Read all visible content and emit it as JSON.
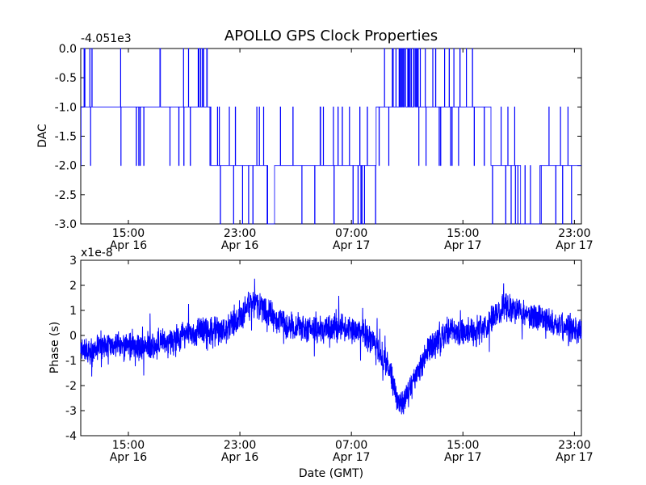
{
  "title": "APOLLO GPS Clock Properties",
  "chart_data": [
    {
      "type": "line",
      "panel": "top",
      "ylabel": "DAC",
      "y_offset_label": "-4.051e3",
      "ylim": [
        -3.0,
        0.0
      ],
      "yticks": [
        "0.0",
        "-0.5",
        "-1.0",
        "-1.5",
        "-2.0",
        "-2.5",
        "-3.0"
      ],
      "xticks": [
        {
          "time": "15:00",
          "date": "Apr 16"
        },
        {
          "time": "23:00",
          "date": "Apr 16"
        },
        {
          "time": "07:00",
          "date": "Apr 17"
        },
        {
          "time": "15:00",
          "date": "Apr 17"
        },
        {
          "time": "23:00",
          "date": "Apr 17"
        }
      ],
      "xlim": [
        "Apr 16 11:35",
        "Apr 17 23:30"
      ],
      "series": [
        {
          "color": "#0000ff",
          "x": [
            "Apr 16 11:35",
            "Apr 16 17:30",
            "Apr 16 22:00",
            "Apr 17 00:00",
            "Apr 17 01:20",
            "Apr 17 02:00",
            "Apr 17 07:00",
            "Apr 17 08:30",
            "Apr 17 09:30",
            "Apr 17 11:00",
            "Apr 17 13:00",
            "Apr 17 14:00",
            "Apr 17 18:00",
            "Apr 17 19:30",
            "Apr 17 23:30"
          ],
          "values": [
            -1.0,
            -1.0,
            -2.0,
            -2.0,
            -3.0,
            -2.0,
            -2.0,
            -2.0,
            -1.0,
            -0.5,
            -1.0,
            -1.0,
            -2.0,
            -3.0,
            -2.0
          ]
        }
      ]
    },
    {
      "type": "line",
      "panel": "bottom",
      "ylabel": "Phase (s)",
      "xlabel": "Date (GMT)",
      "y_offset_label": "x1e-8",
      "ylim": [
        -4,
        3
      ],
      "yticks": [
        "3",
        "2",
        "1",
        "0",
        "-1",
        "-2",
        "-3",
        "-4"
      ],
      "xticks": [
        {
          "time": "15:00",
          "date": "Apr 16"
        },
        {
          "time": "23:00",
          "date": "Apr 16"
        },
        {
          "time": "07:00",
          "date": "Apr 17"
        },
        {
          "time": "15:00",
          "date": "Apr 17"
        },
        {
          "time": "23:00",
          "date": "Apr 17"
        }
      ],
      "xlim": [
        "Apr 16 11:35",
        "Apr 17 23:30"
      ],
      "series": [
        {
          "color": "#0000ff",
          "x": [
            "Apr 16 11:35",
            "Apr 16 14:00",
            "Apr 16 16:00",
            "Apr 16 18:00",
            "Apr 16 20:00",
            "Apr 16 22:00",
            "Apr 17 00:00",
            "Apr 17 02:00",
            "Apr 17 04:00",
            "Apr 17 06:00",
            "Apr 17 08:00",
            "Apr 17 09:30",
            "Apr 17 10:30",
            "Apr 17 11:30",
            "Apr 17 12:30",
            "Apr 17 14:00",
            "Apr 17 16:00",
            "Apr 17 18:00",
            "Apr 17 20:00",
            "Apr 17 22:00",
            "Apr 17 23:30"
          ],
          "values": [
            -0.6,
            -0.4,
            -0.5,
            -0.2,
            0.2,
            0.2,
            1.3,
            0.5,
            0.2,
            0.3,
            0.1,
            -1.0,
            -2.8,
            -1.8,
            -0.6,
            0.2,
            0.1,
            1.2,
            0.8,
            0.4,
            0.2
          ]
        }
      ]
    }
  ]
}
